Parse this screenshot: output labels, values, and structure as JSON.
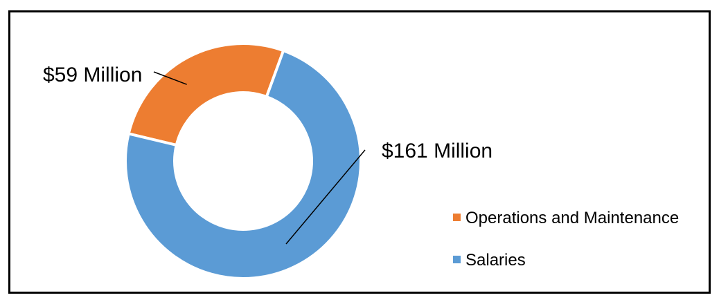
{
  "chart_data": {
    "type": "pie",
    "subtype": "donut",
    "title": "",
    "categories": [
      "Operations and Maintenance",
      "Salaries"
    ],
    "values": [
      59,
      161
    ],
    "value_unit": "$ Million",
    "data_labels": [
      "$59 Million",
      "$161 Million"
    ],
    "colors": [
      "#ED7D31",
      "#5B9BD5"
    ],
    "legend": {
      "position": "bottom-right",
      "entries": [
        "Operations and Maintenance",
        "Salaries"
      ]
    },
    "grid": false
  }
}
